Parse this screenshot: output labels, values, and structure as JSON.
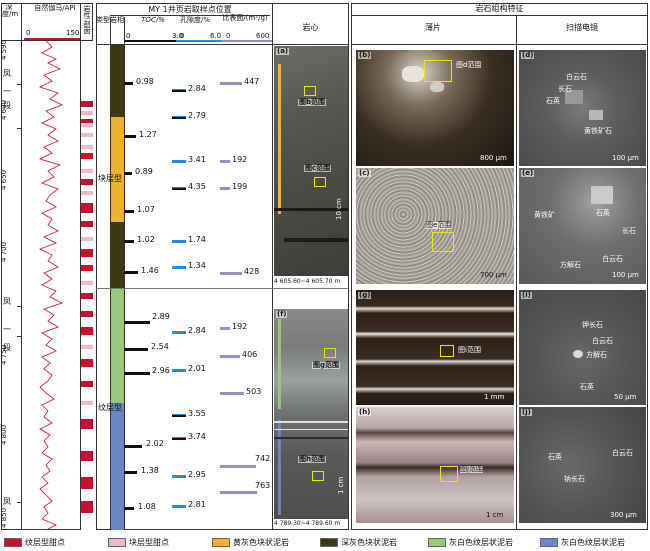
{
  "depth_track": {
    "header": "深度/m",
    "gr_header": "自然伽马/API",
    "gr_min": "0",
    "gr_max": "150",
    "ticks": [
      "4 590",
      "4 600",
      "4 650",
      "4 700",
      "4 750",
      "4 800",
      "4 850"
    ],
    "formation_labels": [
      "凤",
      "一",
      "段",
      "凤",
      "一",
      "段",
      "凤"
    ]
  },
  "lithology_track": {
    "header": "岩性剖面"
  },
  "samples_header": "MY 1井页岩取样点位置",
  "feature_header": "岩石组构特征",
  "columns": {
    "lith_type": "类型",
    "lithofacies": "岩相",
    "toc": {
      "label": "TOC/%",
      "min": "0",
      "max": "3.0"
    },
    "porosity": {
      "label": "孔隙度/%",
      "min": "0",
      "max": "6.0"
    },
    "clay": {
      "label": "比表面/(m²/g)",
      "min": "0",
      "max": "600"
    },
    "core": "岩心",
    "thin": "薄片",
    "sem": "扫描电镜"
  },
  "groups": {
    "upper": "块层型",
    "lower": "纹层型"
  },
  "toc_values": [
    "0.98",
    "1.27",
    "0.89",
    "1.07",
    "1.02",
    "1.46",
    "2.89",
    "2.54",
    "2.96",
    "2.02",
    "1.38",
    "1.08"
  ],
  "porosity_values": [
    "2.84",
    "2.79",
    "3.41",
    "4.35",
    "1.74",
    "1.34",
    "2.84",
    "2.01",
    "3.55",
    "3.74",
    "2.95",
    "2.81"
  ],
  "clay_values": [
    "447",
    "192",
    "199",
    "428",
    "192",
    "406",
    "503",
    "742",
    "763"
  ],
  "core_panels": {
    "a": {
      "label": "(a)",
      "box1": "图b范围",
      "box2": "图c范围",
      "scale": "10 cm",
      "depth": "4 605.60~4 605.70 m"
    },
    "f": {
      "label": "(f)",
      "box1": "图g范围",
      "box2": "图h范围",
      "scale": "1 cm",
      "depth": "4 789.30~4 789.60 m"
    }
  },
  "thin_panels": {
    "b": {
      "label": "(b)",
      "box": "图d范围",
      "scale": "800 μm"
    },
    "c": {
      "label": "(c)",
      "box": "图e范围",
      "scale": "700 μm"
    },
    "g": {
      "label": "(g)",
      "box": "图i范围",
      "scale": "1 mm"
    },
    "h": {
      "label": "(h)",
      "box": "图j范围",
      "scale": "1 cm"
    }
  },
  "sem_panels": {
    "d": {
      "label": "(d)",
      "a1": "白云石",
      "a2": "长石",
      "a3": "石英",
      "a4": "黄铁矿石",
      "scale": "100 μm"
    },
    "e": {
      "label": "(e)",
      "a1": "黄铁矿",
      "a2": "石英",
      "a3": "长石",
      "a4": "白云石",
      "a5": "方解石",
      "scale": "100 μm"
    },
    "i": {
      "label": "(i)",
      "a1": "钾长石",
      "a2": "白云石",
      "a3": "方解石",
      "a4": "石英",
      "scale": "50 μm"
    },
    "j": {
      "label": "(j)",
      "a1": "石英",
      "a2": "白云石",
      "a3": "钠长石",
      "scale": "300 μm"
    }
  },
  "legend": [
    {
      "label": "纹层型甜点",
      "color": "#c8102e"
    },
    {
      "label": "块层型甜点",
      "color": "#f2b8cc"
    },
    {
      "label": "黄灰色块状泥岩",
      "color": "#f0b030"
    },
    {
      "label": "深灰色块状泥岩",
      "color": "#3b3a12"
    },
    {
      "label": "灰白色纹层状泥岩",
      "color": "#98c878"
    },
    {
      "label": "灰白色纹层状泥岩",
      "color": "#6b86c8"
    }
  ]
}
